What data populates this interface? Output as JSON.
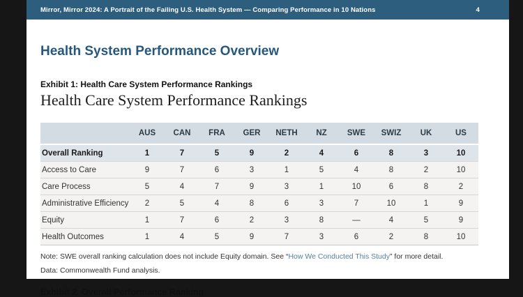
{
  "topbar": {
    "title": "Mirror, Mirror 2024: A Portrait of the Failing U.S. Health System — Comparing Performance in 10 Nations",
    "page_number": "4"
  },
  "page": {
    "heading": "Health System Performance Overview",
    "exhibit1_label": "Exhibit 1: Health Care System Performance Rankings",
    "exhibit1_title": "Health Care System Performance Rankings",
    "note_prefix": "Note: SWE overall ranking calculation does not include Equity domain. See “",
    "note_link": "How We Conducted This Study",
    "note_suffix": "” for more detail.",
    "data_line": "Data: Commonwealth Fund analysis.",
    "exhibit2_label": "Exhibit 2. Overall Performance Ranking"
  },
  "colors": {
    "topbar_bg": "#2e5e7e",
    "heading_text": "#26587c",
    "table_header_bg": "#d3dce3",
    "overall_row_bg": "#dde4ea",
    "row_bg": "#f4f3f1",
    "link": "#54809f"
  },
  "chart_data": {
    "type": "table",
    "title": "Health Care System Performance Rankings",
    "columns": [
      "AUS",
      "CAN",
      "FRA",
      "GER",
      "NETH",
      "NZ",
      "SWE",
      "SWIZ",
      "UK",
      "US"
    ],
    "rows": [
      {
        "label": "Overall Ranking",
        "bold": true,
        "values": [
          "1",
          "7",
          "5",
          "9",
          "2",
          "4",
          "6",
          "8",
          "3",
          "10"
        ]
      },
      {
        "label": "Access to Care",
        "bold": false,
        "values": [
          "9",
          "7",
          "6",
          "3",
          "1",
          "5",
          "4",
          "8",
          "2",
          "10"
        ]
      },
      {
        "label": "Care Process",
        "bold": false,
        "values": [
          "5",
          "4",
          "7",
          "9",
          "3",
          "1",
          "10",
          "6",
          "8",
          "2"
        ]
      },
      {
        "label": "Administrative Efficiency",
        "bold": false,
        "values": [
          "2",
          "5",
          "4",
          "8",
          "6",
          "3",
          "7",
          "10",
          "1",
          "9"
        ]
      },
      {
        "label": "Equity",
        "bold": false,
        "values": [
          "1",
          "7",
          "6",
          "2",
          "3",
          "8",
          "—",
          "4",
          "5",
          "9"
        ]
      },
      {
        "label": "Health Outcomes",
        "bold": false,
        "values": [
          "1",
          "4",
          "5",
          "9",
          "7",
          "3",
          "6",
          "2",
          "8",
          "10"
        ]
      }
    ]
  }
}
